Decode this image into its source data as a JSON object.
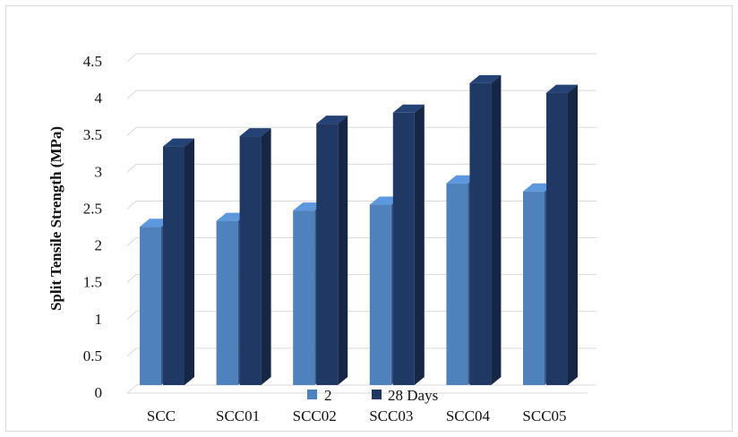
{
  "chart_data": {
    "type": "bar",
    "categories": [
      "SCC",
      "SCC01",
      "SCC02",
      "SCC03",
      "SCC04",
      "SCC05"
    ],
    "series": [
      {
        "name": "2",
        "values": [
          2.15,
          2.23,
          2.37,
          2.45,
          2.74,
          2.63
        ],
        "color": "#4f81bd"
      },
      {
        "name": "28 Days",
        "values": [
          3.24,
          3.38,
          3.55,
          3.7,
          4.1,
          3.97
        ],
        "color": "#1f3864"
      }
    ],
    "title": "",
    "xlabel": "",
    "ylabel": "Split Tensile Strength (MPa)",
    "ylim": [
      0,
      4.5
    ],
    "yticks": [
      "0",
      "0.5",
      "1",
      "1.5",
      "2",
      "2.5",
      "3",
      "3.5",
      "4",
      "4.5"
    ],
    "grid": true,
    "legend": "bottom",
    "style": "3d-column"
  }
}
